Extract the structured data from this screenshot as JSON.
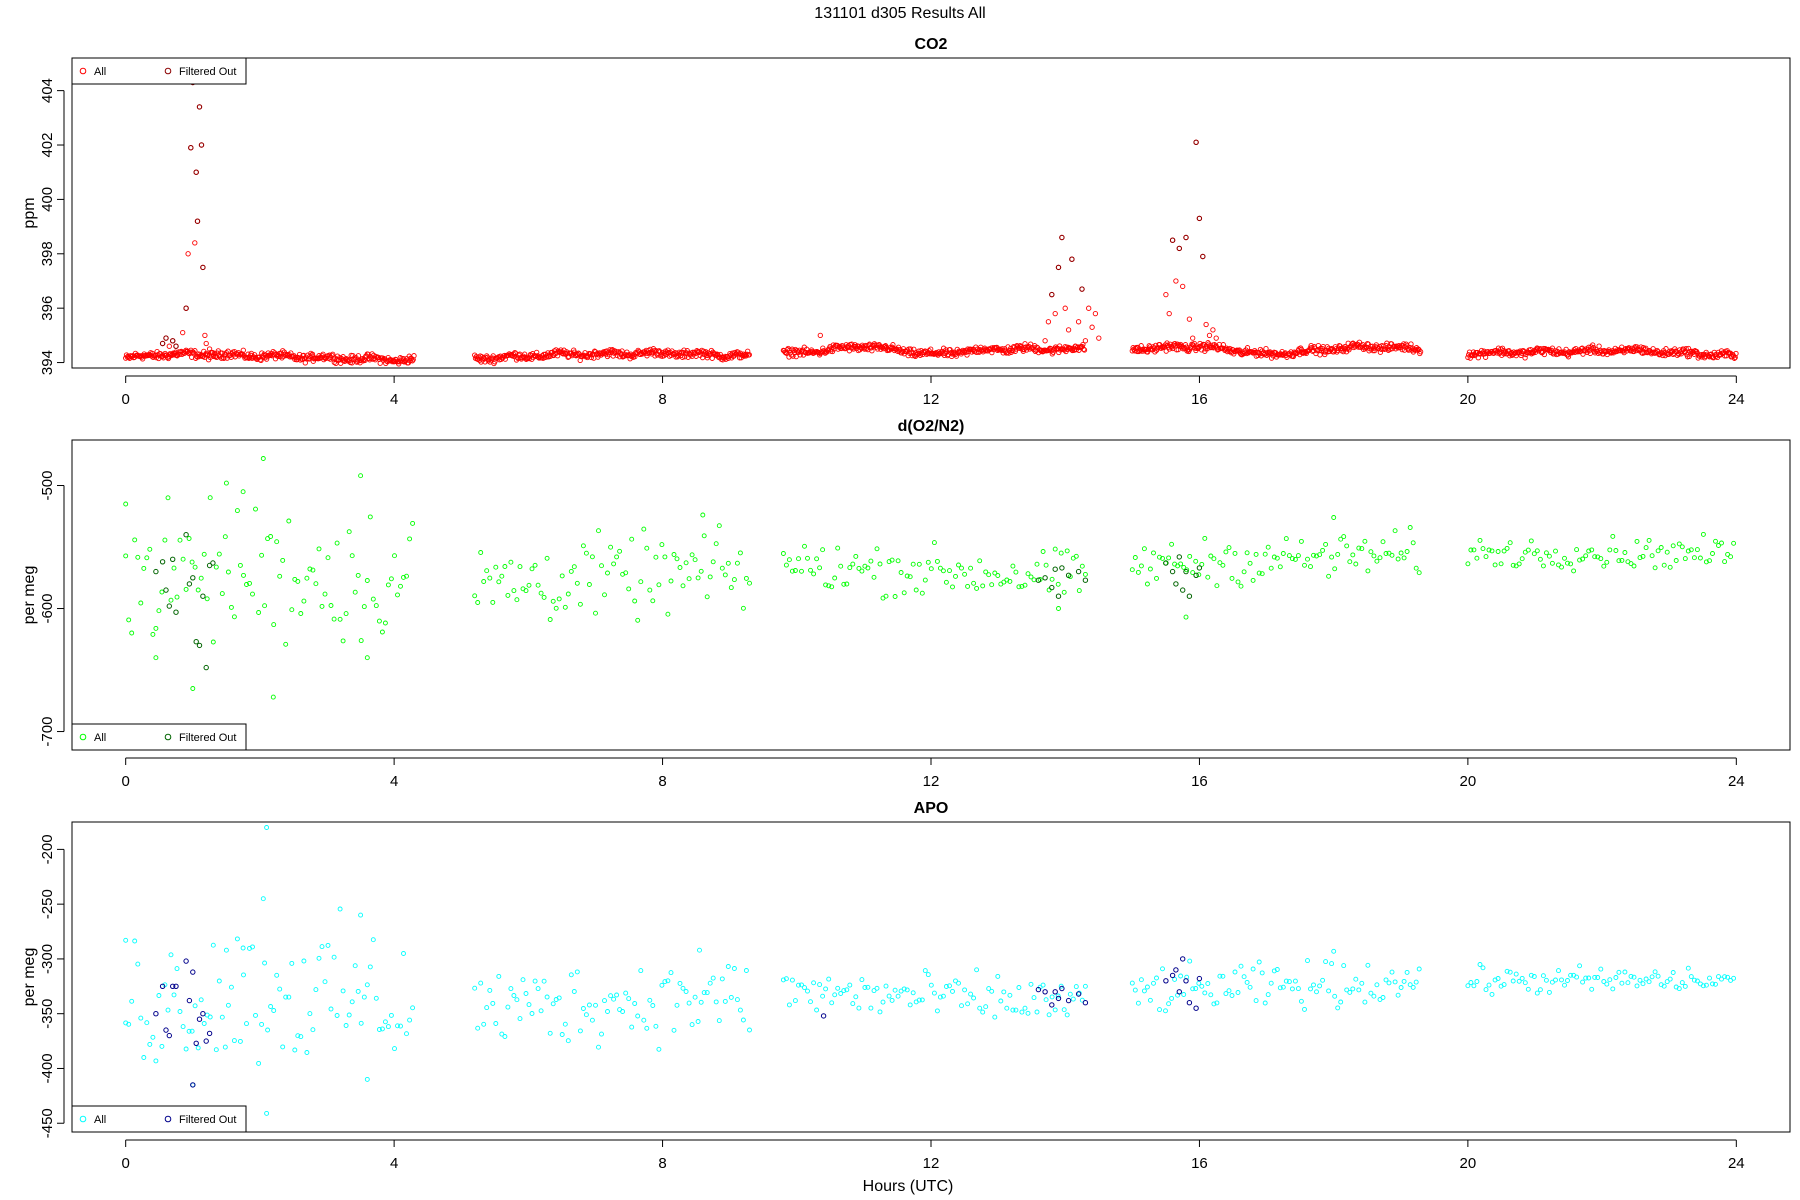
{
  "figure": {
    "title": "131101   d305   Results All",
    "xlabel": "Hours (UTC)"
  },
  "chart_data": [
    {
      "type": "scatter",
      "title": "CO2",
      "xlabel": "Hours (UTC)",
      "ylabel": "ppm",
      "xlim": [
        -0.8,
        24.8
      ],
      "ylim": [
        393.8,
        405.2
      ],
      "xticks": [
        0,
        4,
        8,
        12,
        16,
        20,
        24
      ],
      "yticks": [
        394,
        396,
        398,
        400,
        402,
        404
      ],
      "grid": false,
      "legend": {
        "position": "top-left",
        "entries": [
          "All",
          "Filtered Out"
        ]
      },
      "colors": {
        "all": "#ff0000",
        "filtered": "#8b0000"
      },
      "series": [
        {
          "name": "All",
          "segments": [
            [
              0.0,
              4.3
            ],
            [
              5.2,
              9.3
            ],
            [
              9.8,
              14.3
            ],
            [
              15.0,
              19.3
            ],
            [
              20.0,
              24.0
            ]
          ],
          "baseline": [
            [
              0.0,
              394.15
            ],
            [
              0.5,
              394.3
            ],
            [
              1.2,
              394.3
            ],
            [
              2.0,
              394.25
            ],
            [
              4.0,
              394.1
            ],
            [
              5.2,
              394.15
            ],
            [
              6.5,
              394.3
            ],
            [
              8.0,
              394.35
            ],
            [
              9.3,
              394.25
            ],
            [
              10.0,
              394.35
            ],
            [
              11.0,
              394.6
            ],
            [
              12.0,
              394.3
            ],
            [
              13.0,
              394.5
            ],
            [
              14.3,
              394.5
            ],
            [
              15.0,
              394.5
            ],
            [
              16.0,
              394.6
            ],
            [
              17.0,
              394.3
            ],
            [
              18.5,
              394.6
            ],
            [
              19.3,
              394.5
            ],
            [
              20.0,
              394.35
            ],
            [
              22.5,
              394.45
            ],
            [
              24.0,
              394.25
            ]
          ],
          "scatter": 0.07,
          "spikes": [
            [
              0.55,
              394.7
            ],
            [
              0.6,
              394.9
            ],
            [
              0.65,
              394.6
            ],
            [
              0.7,
              394.8
            ],
            [
              0.75,
              394.6
            ],
            [
              0.85,
              395.1
            ],
            [
              0.9,
              396.0
            ],
            [
              0.93,
              398.0
            ],
            [
              0.97,
              401.9
            ],
            [
              1.0,
              404.3
            ],
            [
              1.03,
              398.4
            ],
            [
              1.05,
              401.0
            ],
            [
              1.07,
              399.2
            ],
            [
              1.1,
              403.4
            ],
            [
              1.13,
              402.0
            ],
            [
              1.15,
              397.5
            ],
            [
              1.18,
              395.0
            ],
            [
              1.2,
              394.7
            ],
            [
              1.25,
              394.5
            ],
            [
              10.35,
              395.0
            ],
            [
              13.7,
              394.8
            ],
            [
              13.75,
              395.5
            ],
            [
              13.8,
              396.5
            ],
            [
              13.85,
              395.8
            ],
            [
              13.9,
              397.5
            ],
            [
              13.95,
              398.6
            ],
            [
              14.0,
              396.0
            ],
            [
              14.05,
              395.2
            ],
            [
              14.1,
              397.8
            ],
            [
              14.15,
              394.6
            ],
            [
              14.2,
              395.5
            ],
            [
              14.25,
              396.7
            ],
            [
              14.3,
              394.8
            ],
            [
              14.35,
              396.0
            ],
            [
              14.4,
              395.3
            ],
            [
              14.45,
              395.8
            ],
            [
              14.5,
              394.9
            ],
            [
              15.5,
              396.5
            ],
            [
              15.55,
              395.8
            ],
            [
              15.6,
              398.5
            ],
            [
              15.65,
              397.0
            ],
            [
              15.7,
              398.2
            ],
            [
              15.75,
              396.8
            ],
            [
              15.8,
              398.6
            ],
            [
              15.85,
              395.6
            ],
            [
              15.9,
              394.9
            ],
            [
              15.95,
              402.1
            ],
            [
              16.0,
              399.3
            ],
            [
              16.05,
              397.9
            ],
            [
              16.1,
              395.4
            ],
            [
              16.15,
              395.0
            ],
            [
              16.2,
              395.2
            ],
            [
              16.25,
              394.9
            ]
          ]
        },
        {
          "name": "Filtered Out",
          "points": [
            [
              0.55,
              394.7
            ],
            [
              0.6,
              394.9
            ],
            [
              0.7,
              394.8
            ],
            [
              0.75,
              394.6
            ],
            [
              0.9,
              396.0
            ],
            [
              0.97,
              401.9
            ],
            [
              1.0,
              404.3
            ],
            [
              1.05,
              401.0
            ],
            [
              1.07,
              399.2
            ],
            [
              1.1,
              403.4
            ],
            [
              1.13,
              402.0
            ],
            [
              1.15,
              397.5
            ],
            [
              13.8,
              396.5
            ],
            [
              13.9,
              397.5
            ],
            [
              13.95,
              398.6
            ],
            [
              14.1,
              397.8
            ],
            [
              14.25,
              396.7
            ],
            [
              15.6,
              398.5
            ],
            [
              15.7,
              398.2
            ],
            [
              15.8,
              398.6
            ],
            [
              15.95,
              402.1
            ],
            [
              16.0,
              399.3
            ],
            [
              16.05,
              397.9
            ]
          ]
        }
      ]
    },
    {
      "type": "scatter",
      "title": "d(O2/N2)",
      "xlabel": "",
      "ylabel": "per meg",
      "xlim": [
        -0.8,
        24.8
      ],
      "ylim": [
        -715,
        -463
      ],
      "xticks": [
        0,
        4,
        8,
        12,
        16,
        20,
        24
      ],
      "yticks": [
        -700,
        -600,
        -500
      ],
      "grid": false,
      "legend": {
        "position": "bottom-left",
        "entries": [
          "All",
          "Filtered Out"
        ]
      },
      "colors": {
        "all": "#00ff00",
        "filtered": "#006400"
      },
      "series": [
        {
          "name": "All",
          "segments": [
            [
              0.0,
              4.3
            ],
            [
              5.2,
              9.3
            ],
            [
              9.8,
              14.3
            ],
            [
              15.0,
              19.3
            ],
            [
              20.0,
              24.0
            ]
          ],
          "baseline": [
            [
              0.0,
              -575
            ],
            [
              2.0,
              -570
            ],
            [
              4.3,
              -575
            ],
            [
              5.2,
              -580
            ],
            [
              9.3,
              -570
            ],
            [
              9.8,
              -565
            ],
            [
              14.3,
              -575
            ],
            [
              15.0,
              -565
            ],
            [
              19.3,
              -555
            ],
            [
              20.0,
              -555
            ],
            [
              24.0,
              -555
            ]
          ],
          "noise": [
            [
              0.0,
              4.3,
              28
            ],
            [
              5.2,
              9.3,
              16
            ],
            [
              9.8,
              14.3,
              10
            ],
            [
              15.0,
              19.3,
              9
            ],
            [
              20.0,
              24.0,
              6
            ]
          ],
          "outliers": [
            [
              2.1,
              -455
            ],
            [
              2.05,
              -478
            ],
            [
              1.75,
              -505
            ],
            [
              1.5,
              -498
            ],
            [
              2.2,
              -672
            ],
            [
              0.45,
              -640
            ],
            [
              1.0,
              -665
            ],
            [
              3.5,
              -492
            ],
            [
              3.6,
              -640
            ],
            [
              0.0,
              -515
            ],
            [
              8.6,
              -524
            ],
            [
              18.0,
              -526
            ],
            [
              15.8,
              -607
            ],
            [
              13.9,
              -600
            ]
          ]
        },
        {
          "name": "Filtered Out",
          "points": [
            [
              0.45,
              -570
            ],
            [
              0.55,
              -562
            ],
            [
              0.6,
              -585
            ],
            [
              0.65,
              -598
            ],
            [
              0.7,
              -560
            ],
            [
              0.75,
              -603
            ],
            [
              0.9,
              -540
            ],
            [
              0.95,
              -580
            ],
            [
              1.0,
              -575
            ],
            [
              1.05,
              -627
            ],
            [
              1.1,
              -630
            ],
            [
              1.15,
              -590
            ],
            [
              1.2,
              -648
            ],
            [
              1.25,
              -565
            ],
            [
              1.3,
              -563
            ],
            [
              13.6,
              -577
            ],
            [
              13.7,
              -575
            ],
            [
              13.8,
              -583
            ],
            [
              13.85,
              -568
            ],
            [
              13.9,
              -590
            ],
            [
              13.95,
              -567
            ],
            [
              14.05,
              -573
            ],
            [
              14.2,
              -570
            ],
            [
              14.3,
              -577
            ],
            [
              15.5,
              -563
            ],
            [
              15.6,
              -570
            ],
            [
              15.65,
              -580
            ],
            [
              15.7,
              -558
            ],
            [
              15.75,
              -585
            ],
            [
              15.8,
              -570
            ],
            [
              15.85,
              -590
            ],
            [
              15.95,
              -573
            ],
            [
              16.0,
              -567
            ]
          ]
        }
      ]
    },
    {
      "type": "scatter",
      "title": "APO",
      "xlabel": "Hours (UTC)",
      "ylabel": "per meg",
      "xlim": [
        -0.8,
        24.8
      ],
      "ylim": [
        -458,
        -175
      ],
      "xticks": [
        0,
        4,
        8,
        12,
        16,
        20,
        24
      ],
      "yticks": [
        -450,
        -400,
        -350,
        -300,
        -250,
        -200
      ],
      "grid": false,
      "legend": {
        "position": "bottom-left",
        "entries": [
          "All",
          "Filtered Out"
        ]
      },
      "colors": {
        "all": "#00ffff",
        "filtered": "#00008b"
      },
      "series": [
        {
          "name": "All",
          "segments": [
            [
              0.0,
              4.3
            ],
            [
              5.2,
              9.3
            ],
            [
              9.8,
              14.3
            ],
            [
              15.0,
              19.3
            ],
            [
              20.0,
              24.0
            ]
          ],
          "baseline": [
            [
              0.0,
              -340
            ],
            [
              2.0,
              -330
            ],
            [
              4.3,
              -340
            ],
            [
              5.2,
              -345
            ],
            [
              9.3,
              -335
            ],
            [
              9.8,
              -330
            ],
            [
              14.3,
              -340
            ],
            [
              15.0,
              -330
            ],
            [
              19.3,
              -320
            ],
            [
              20.0,
              -320
            ],
            [
              24.0,
              -320
            ]
          ],
          "noise": [
            [
              0.0,
              4.3,
              32
            ],
            [
              5.2,
              9.3,
              18
            ],
            [
              9.8,
              14.3,
              11
            ],
            [
              15.0,
              19.3,
              10
            ],
            [
              20.0,
              24.0,
              6
            ]
          ],
          "outliers": [
            [
              2.1,
              -180
            ],
            [
              2.05,
              -245
            ],
            [
              2.1,
              -441
            ],
            [
              1.75,
              -290
            ],
            [
              1.5,
              -292
            ],
            [
              3.5,
              -260
            ],
            [
              3.6,
              -410
            ],
            [
              0.0,
              -283
            ],
            [
              8.55,
              -292
            ],
            [
              18.0,
              -293
            ],
            [
              1.0,
              -415
            ]
          ]
        },
        {
          "name": "Filtered Out",
          "points": [
            [
              0.45,
              -350
            ],
            [
              0.55,
              -325
            ],
            [
              0.6,
              -365
            ],
            [
              0.65,
              -370
            ],
            [
              0.7,
              -325
            ],
            [
              0.75,
              -325
            ],
            [
              0.9,
              -302
            ],
            [
              0.95,
              -338
            ],
            [
              1.0,
              -312
            ],
            [
              1.05,
              -377
            ],
            [
              1.1,
              -355
            ],
            [
              1.15,
              -350
            ],
            [
              1.2,
              -375
            ],
            [
              1.25,
              -368
            ],
            [
              1.0,
              -415
            ],
            [
              10.4,
              -352
            ],
            [
              13.6,
              -328
            ],
            [
              13.7,
              -330
            ],
            [
              13.8,
              -342
            ],
            [
              13.85,
              -330
            ],
            [
              13.9,
              -336
            ],
            [
              13.95,
              -327
            ],
            [
              14.05,
              -338
            ],
            [
              14.2,
              -332
            ],
            [
              14.3,
              -340
            ],
            [
              15.5,
              -320
            ],
            [
              15.6,
              -315
            ],
            [
              15.65,
              -310
            ],
            [
              15.7,
              -330
            ],
            [
              15.75,
              -300
            ],
            [
              15.8,
              -320
            ],
            [
              15.85,
              -340
            ],
            [
              15.95,
              -345
            ],
            [
              16.0,
              -318
            ]
          ]
        }
      ]
    }
  ]
}
